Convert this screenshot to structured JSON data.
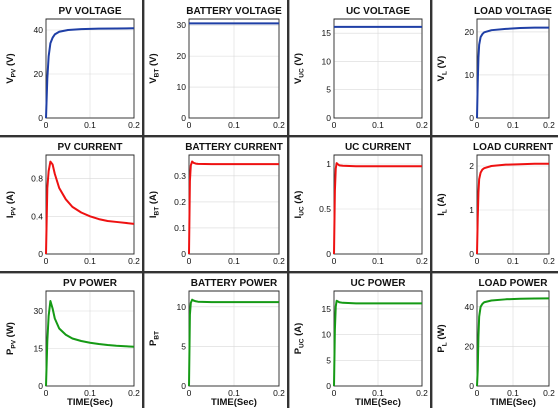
{
  "colors": {
    "voltage": "#1f3fa6",
    "current": "#ee1111",
    "power": "#159a15"
  },
  "chart_data": [
    {
      "type": "line",
      "title": "PV VOLTAGE",
      "ylabel_main": "V",
      "ylabel_sub": "PV",
      "ylabel_unit": " (V)",
      "xlabel": "",
      "xlim": [
        0,
        0.2
      ],
      "ylim": [
        0,
        45
      ],
      "yticks": [
        0,
        20,
        40
      ],
      "xticks": [
        0,
        0.1,
        0.2
      ],
      "color": "voltage",
      "series": [
        {
          "x": [
            0,
            0.003,
            0.006,
            0.01,
            0.015,
            0.02,
            0.03,
            0.05,
            0.08,
            0.12,
            0.16,
            0.2
          ],
          "y": [
            0,
            18,
            28,
            34,
            36.5,
            38,
            39.2,
            40,
            40.4,
            40.6,
            40.7,
            40.8
          ]
        }
      ]
    },
    {
      "type": "line",
      "title": "BATTERY VOLTAGE",
      "ylabel_main": "V",
      "ylabel_sub": "BT",
      "ylabel_unit": " (V)",
      "xlabel": "",
      "xlim": [
        0,
        0.2
      ],
      "ylim": [
        0,
        32
      ],
      "yticks": [
        0,
        10,
        20,
        30
      ],
      "xticks": [
        0,
        0.1,
        0.2
      ],
      "color": "voltage",
      "series": [
        {
          "x": [
            0,
            0.2
          ],
          "y": [
            30.6,
            30.6
          ]
        }
      ]
    },
    {
      "type": "line",
      "title": "UC VOLTAGE",
      "ylabel_main": "V",
      "ylabel_sub": "UC",
      "ylabel_unit": " (V)",
      "xlabel": "",
      "xlim": [
        0,
        0.2
      ],
      "ylim": [
        0,
        17.5
      ],
      "yticks": [
        0,
        5,
        10,
        15
      ],
      "xticks": [
        0,
        0.1,
        0.2
      ],
      "color": "voltage",
      "series": [
        {
          "x": [
            0,
            0.2
          ],
          "y": [
            16.1,
            16.1
          ]
        }
      ]
    },
    {
      "type": "line",
      "title": "LOAD VOLTAGE",
      "ylabel_main": "V",
      "ylabel_sub": "L",
      "ylabel_unit": " (V)",
      "xlabel": "",
      "xlim": [
        0,
        0.2
      ],
      "ylim": [
        0,
        23
      ],
      "yticks": [
        0,
        10,
        20
      ],
      "xticks": [
        0,
        0.1,
        0.2
      ],
      "color": "voltage",
      "series": [
        {
          "x": [
            0,
            0.002,
            0.004,
            0.006,
            0.01,
            0.015,
            0.02,
            0.04,
            0.08,
            0.12,
            0.16,
            0.2
          ],
          "y": [
            0,
            8,
            14,
            17,
            18.8,
            19.5,
            19.9,
            20.4,
            20.7,
            20.9,
            21,
            21
          ]
        }
      ]
    },
    {
      "type": "line",
      "title": "PV CURRENT",
      "ylabel_main": "I",
      "ylabel_sub": "PV",
      "ylabel_unit": " (A)",
      "xlabel": "",
      "xlim": [
        0,
        0.2
      ],
      "ylim": [
        0,
        1.05
      ],
      "yticks": [
        0,
        0.4,
        0.8
      ],
      "xticks": [
        0,
        0.1,
        0.2
      ],
      "color": "current",
      "series": [
        {
          "x": [
            0,
            0.003,
            0.006,
            0.01,
            0.015,
            0.02,
            0.03,
            0.045,
            0.06,
            0.08,
            0.1,
            0.12,
            0.14,
            0.16,
            0.18,
            0.2
          ],
          "y": [
            0,
            0.7,
            0.88,
            0.98,
            0.95,
            0.85,
            0.7,
            0.58,
            0.5,
            0.44,
            0.4,
            0.37,
            0.35,
            0.34,
            0.33,
            0.32
          ]
        }
      ]
    },
    {
      "type": "line",
      "title": "BATTERY CURRENT",
      "ylabel_main": "I",
      "ylabel_sub": "BT",
      "ylabel_unit": " (A)",
      "xlabel": "",
      "xlim": [
        0,
        0.2
      ],
      "ylim": [
        0,
        0.38
      ],
      "yticks": [
        0,
        0.1,
        0.2,
        0.3
      ],
      "xticks": [
        0,
        0.1,
        0.2
      ],
      "color": "current",
      "series": [
        {
          "x": [
            0,
            0.002,
            0.004,
            0.007,
            0.01,
            0.015,
            0.02,
            0.05,
            0.1,
            0.15,
            0.2
          ],
          "y": [
            0,
            0.28,
            0.34,
            0.355,
            0.35,
            0.347,
            0.346,
            0.345,
            0.345,
            0.345,
            0.345
          ]
        }
      ]
    },
    {
      "type": "line",
      "title": "UC CURRENT",
      "ylabel_main": "I",
      "ylabel_sub": "UC",
      "ylabel_unit": " (A)",
      "xlabel": "",
      "xlim": [
        0,
        0.2
      ],
      "ylim": [
        0,
        1.1
      ],
      "yticks": [
        0,
        0.5,
        1
      ],
      "xticks": [
        0,
        0.1,
        0.2
      ],
      "color": "current",
      "series": [
        {
          "x": [
            0,
            0.002,
            0.004,
            0.006,
            0.008,
            0.012,
            0.02,
            0.05,
            0.1,
            0.15,
            0.2
          ],
          "y": [
            0,
            0.7,
            0.95,
            1.01,
            1.0,
            0.985,
            0.98,
            0.975,
            0.975,
            0.975,
            0.975
          ]
        }
      ]
    },
    {
      "type": "line",
      "title": "LOAD CURRENT",
      "ylabel_main": "I",
      "ylabel_sub": "L",
      "ylabel_unit": " (A)",
      "xlabel": "",
      "xlim": [
        0,
        0.2
      ],
      "ylim": [
        0,
        2.25
      ],
      "yticks": [
        0,
        1,
        2
      ],
      "xticks": [
        0,
        0.1,
        0.2
      ],
      "color": "current",
      "series": [
        {
          "x": [
            0,
            0.002,
            0.004,
            0.006,
            0.01,
            0.015,
            0.02,
            0.04,
            0.08,
            0.12,
            0.16,
            0.2
          ],
          "y": [
            0,
            0.8,
            1.4,
            1.7,
            1.85,
            1.92,
            1.95,
            2.0,
            2.03,
            2.04,
            2.05,
            2.05
          ]
        }
      ]
    },
    {
      "type": "line",
      "title": "PV POWER",
      "ylabel_main": "P",
      "ylabel_sub": "PV",
      "ylabel_unit": " (W)",
      "xlabel": "TIME(Sec)",
      "xlim": [
        0,
        0.2
      ],
      "ylim": [
        0,
        38
      ],
      "yticks": [
        0,
        15,
        30
      ],
      "xticks": [
        0,
        0.1,
        0.2
      ],
      "color": "power",
      "series": [
        {
          "x": [
            0,
            0.003,
            0.006,
            0.01,
            0.015,
            0.02,
            0.03,
            0.045,
            0.06,
            0.08,
            0.1,
            0.12,
            0.14,
            0.16,
            0.18,
            0.2
          ],
          "y": [
            0,
            18,
            28,
            34,
            31,
            27,
            23,
            20.5,
            19,
            18,
            17.3,
            16.8,
            16.4,
            16.1,
            15.9,
            15.7
          ]
        }
      ]
    },
    {
      "type": "line",
      "title": "BATTERY POWER",
      "ylabel_main": "P",
      "ylabel_sub": "BT",
      "ylabel_unit": "",
      "xlabel": "TIME(Sec)",
      "xlim": [
        0,
        0.2
      ],
      "ylim": [
        0,
        12
      ],
      "yticks": [
        0,
        5,
        10
      ],
      "xticks": [
        0,
        0.1,
        0.2
      ],
      "color": "power",
      "series": [
        {
          "x": [
            0,
            0.002,
            0.004,
            0.007,
            0.01,
            0.015,
            0.02,
            0.05,
            0.1,
            0.15,
            0.2
          ],
          "y": [
            0,
            9,
            10.5,
            10.9,
            10.8,
            10.7,
            10.65,
            10.6,
            10.6,
            10.6,
            10.6
          ]
        }
      ]
    },
    {
      "type": "line",
      "title": "UC POWER",
      "ylabel_main": "P",
      "ylabel_sub": "UC",
      "ylabel_unit": " (A)",
      "xlabel": "TIME(Sec)",
      "xlim": [
        0,
        0.2
      ],
      "ylim": [
        0,
        18.5
      ],
      "yticks": [
        0,
        5,
        10,
        15
      ],
      "xticks": [
        0,
        0.1,
        0.2
      ],
      "color": "power",
      "series": [
        {
          "x": [
            0,
            0.002,
            0.004,
            0.006,
            0.008,
            0.012,
            0.02,
            0.05,
            0.1,
            0.15,
            0.2
          ],
          "y": [
            0,
            11,
            15.5,
            16.6,
            16.5,
            16.3,
            16.2,
            16.1,
            16.1,
            16.1,
            16.1
          ]
        }
      ]
    },
    {
      "type": "line",
      "title": "LOAD POWER",
      "ylabel_main": "P",
      "ylabel_sub": "L",
      "ylabel_unit": " (W)",
      "xlabel": "TIME(Sec)",
      "xlim": [
        0,
        0.2
      ],
      "ylim": [
        0,
        48
      ],
      "yticks": [
        0,
        20,
        40
      ],
      "xticks": [
        0,
        0.1,
        0.2
      ],
      "color": "power",
      "series": [
        {
          "x": [
            0,
            0.002,
            0.004,
            0.006,
            0.01,
            0.015,
            0.02,
            0.04,
            0.08,
            0.12,
            0.16,
            0.2
          ],
          "y": [
            0,
            8,
            25,
            35,
            40,
            41.5,
            42.3,
            43.2,
            43.8,
            44.1,
            44.2,
            44.3
          ]
        }
      ]
    }
  ]
}
